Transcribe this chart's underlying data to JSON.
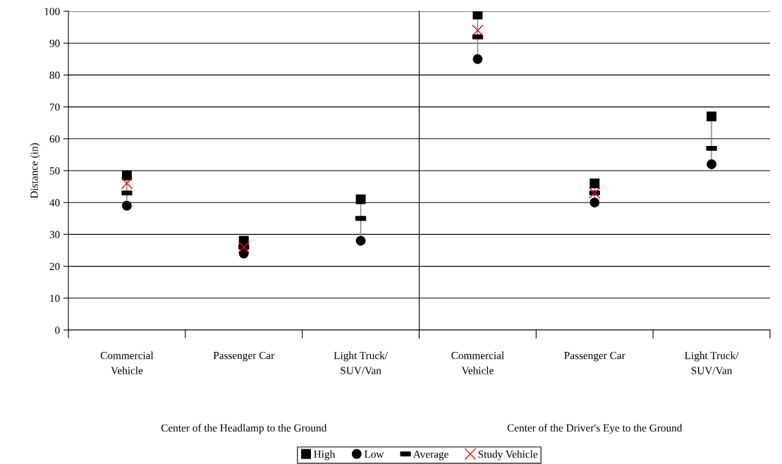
{
  "chart_data": {
    "type": "scatter",
    "ylabel": "Distance (in)",
    "categories": [
      "Commercial\nVehicle",
      "Passenger Car",
      "Light Truck/\nSUV/Van",
      "Commercial\nVehicle",
      "Passenger Car",
      "Light Truck/\nSUV/Van"
    ],
    "series": [
      {
        "name": "High",
        "color": "#000000",
        "marker": "square",
        "values": [
          48.5,
          28,
          41,
          99,
          46,
          67
        ]
      },
      {
        "name": "Low",
        "color": "#000000",
        "marker": "circle",
        "values": [
          39,
          24,
          28,
          85,
          40,
          52
        ]
      },
      {
        "name": "Average",
        "color": "#000000",
        "values": [
          43,
          26,
          35,
          92,
          43,
          57
        ]
      },
      {
        "name": "Study Vehicle",
        "color": "#ff0000",
        "marker": "cross",
        "values": [
          46,
          26,
          null,
          94,
          43,
          null
        ]
      }
    ],
    "annotations": [
      "Center of the Headlamp to the Ground",
      "Center of the Driver's Eye to the Ground"
    ],
    "ylim": [
      0,
      100
    ],
    "yticks": [
      0,
      10,
      20,
      30,
      40,
      50,
      60,
      70,
      80,
      90,
      100
    ],
    "grid": "y",
    "legend": "bottom"
  }
}
